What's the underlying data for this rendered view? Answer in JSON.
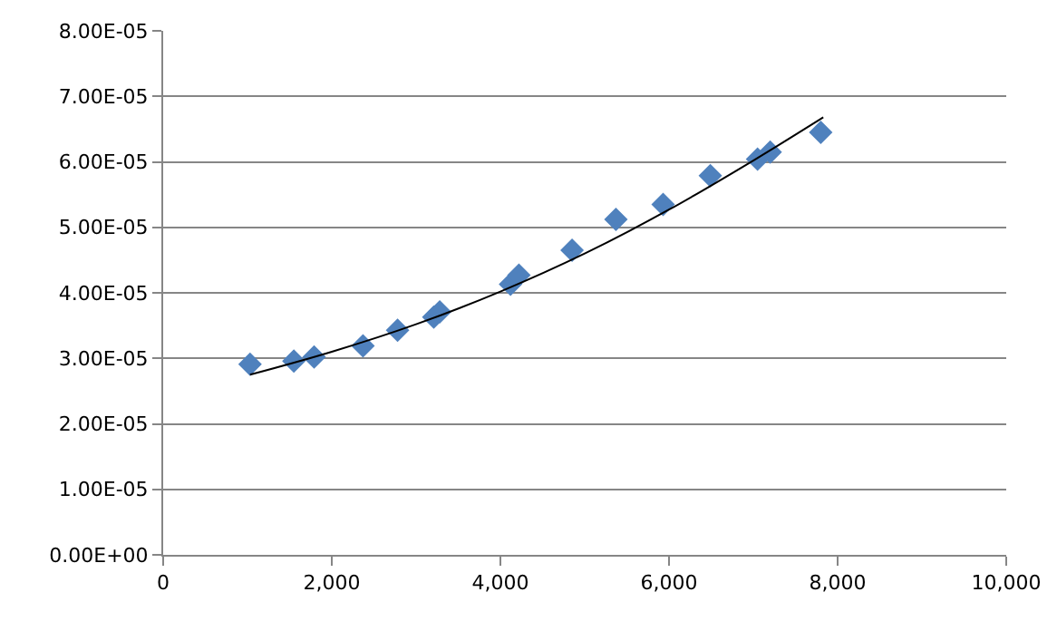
{
  "chart_data": {
    "type": "scatter",
    "marker": "diamond",
    "grid": "y",
    "xlim": [
      0,
      10000
    ],
    "xticks": [
      0,
      {
        "value": 2000,
        "label": "2,000"
      },
      {
        "value": 4000,
        "label": "4,000"
      },
      {
        "value": 6000,
        "label": "6,000"
      },
      {
        "value": 8000,
        "label": "8,000"
      },
      {
        "value": 10000,
        "label": "10,000"
      }
    ],
    "ylim": [
      0,
      8e-05
    ],
    "yticks": [
      {
        "value": 0,
        "label": "0.00E+00"
      },
      {
        "value": 1e-05,
        "label": "1.00E-05"
      },
      {
        "value": 2e-05,
        "label": "2.00E-05"
      },
      {
        "value": 3e-05,
        "label": "3.00E-05"
      },
      {
        "value": 4e-05,
        "label": "4.00E-05"
      },
      {
        "value": 5e-05,
        "label": "5.00E-05"
      },
      {
        "value": 6e-05,
        "label": "6.00E-05"
      },
      {
        "value": 7e-05,
        "label": "7.00E-05"
      },
      {
        "value": 8e-05,
        "label": "8.00E-05"
      }
    ],
    "series": [
      {
        "color": "#4f81bd",
        "x": [
          1030,
          1550,
          1790,
          2370,
          2780,
          3210,
          3280,
          4120,
          4220,
          4850,
          5370,
          5930,
          6490,
          7050,
          7200,
          7800
        ],
        "values": [
          2.91e-05,
          2.96e-05,
          3.02e-05,
          3.19e-05,
          3.43e-05,
          3.63e-05,
          3.71e-05,
          4.13e-05,
          4.27e-05,
          4.65e-05,
          5.12e-05,
          5.35e-05,
          5.79e-05,
          6.04e-05,
          6.15e-05,
          6.45e-05
        ]
      },
      {
        "type": "line",
        "marker": "none",
        "color": "#000000",
        "x": [
          1030,
          2000,
          3000,
          4000,
          5000,
          6000,
          7000,
          7830
        ],
        "values": [
          2.75e-05,
          3.1e-05,
          3.52e-05,
          4.02e-05,
          4.6e-05,
          5.27e-05,
          6.02e-05,
          6.68e-05
        ]
      }
    ]
  }
}
